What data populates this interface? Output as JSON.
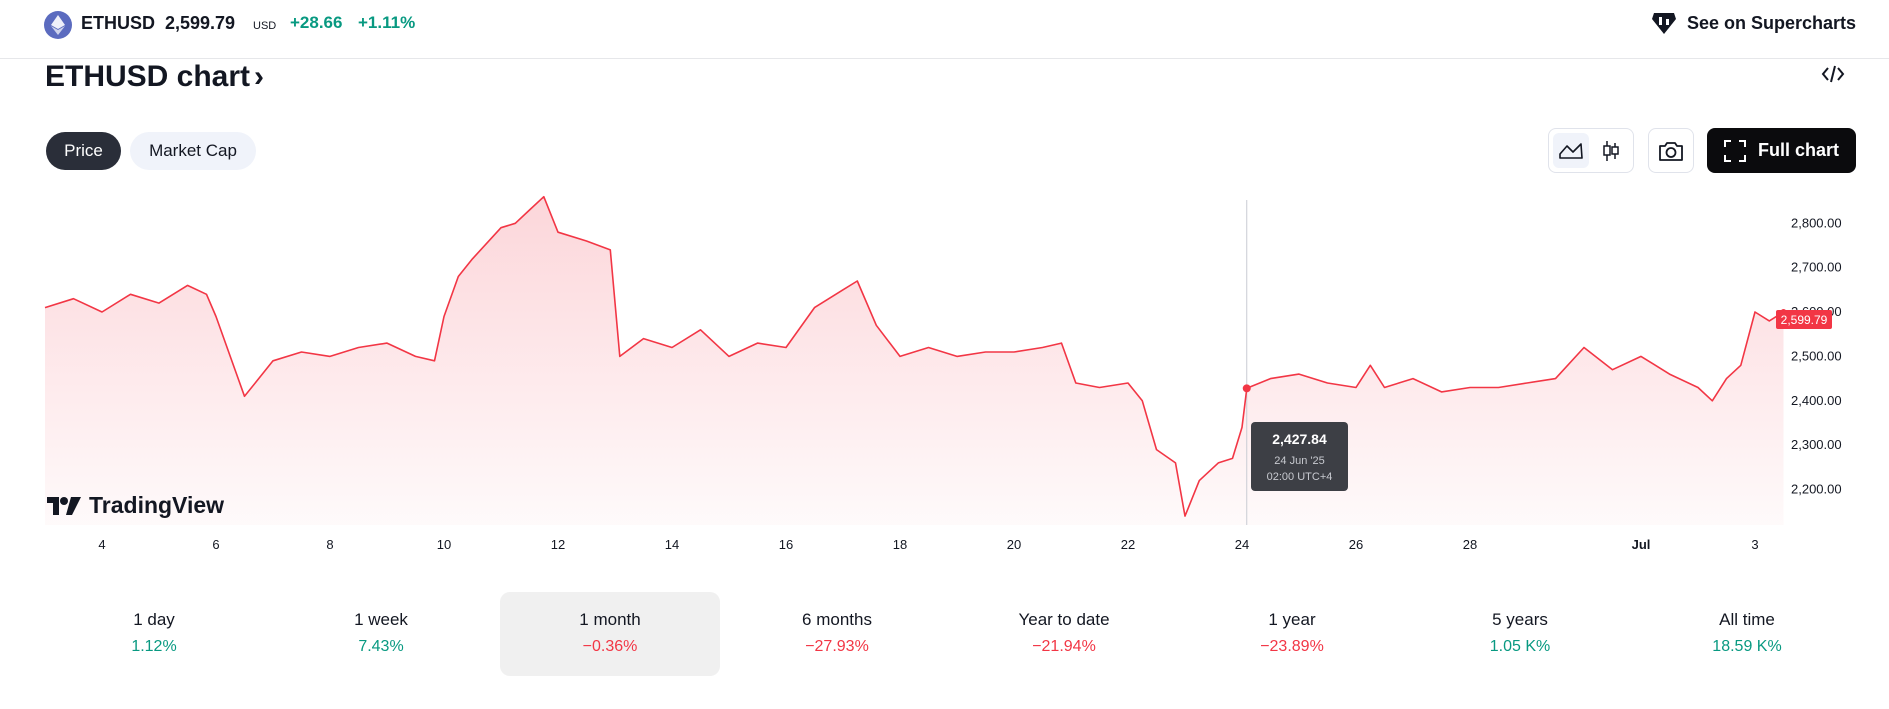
{
  "header": {
    "symbol": "ETHUSD",
    "price": "2,599.79",
    "currency": "USD",
    "change": "+28.66",
    "change_pct": "+1.11%",
    "supercharts_label": "See on Supercharts"
  },
  "title": {
    "text": "ETHUSD chart",
    "chevron": "›"
  },
  "tabs": [
    {
      "label": "Price",
      "active": true
    },
    {
      "label": "Market Cap",
      "active": false
    }
  ],
  "toolbar": {
    "full_chart_label": "Full chart",
    "icons": [
      "area-chart-icon",
      "candles-icon",
      "camera-icon",
      "fullscreen-icon",
      "embed-code-icon"
    ]
  },
  "tooltip": {
    "price": "2,427.84",
    "date": "24 Jun '25",
    "time": "02:00 UTC+4"
  },
  "brand": {
    "name": "TradingView"
  },
  "ranges": [
    {
      "label": "1 day",
      "value": "1.12%",
      "direction": "up"
    },
    {
      "label": "1 week",
      "value": "7.43%",
      "direction": "up"
    },
    {
      "label": "1 month",
      "value": "−0.36%",
      "direction": "down",
      "selected": true
    },
    {
      "label": "6 months",
      "value": "−27.93%",
      "direction": "down"
    },
    {
      "label": "Year to date",
      "value": "−21.94%",
      "direction": "down"
    },
    {
      "label": "1 year",
      "value": "−23.89%",
      "direction": "down"
    },
    {
      "label": "5 years",
      "value": "1.05 K%",
      "direction": "up"
    },
    {
      "label": "All time",
      "value": "18.59 K%",
      "direction": "up"
    }
  ],
  "colors": {
    "line": "#f23645",
    "fill_top": "#fcd4d8",
    "positive": "#089981",
    "negative": "#f23645",
    "button_dark": "#0b0b0d"
  },
  "chart_data": {
    "type": "area",
    "x_ticks": [
      "4",
      "6",
      "8",
      "10",
      "12",
      "14",
      "16",
      "18",
      "20",
      "22",
      "24",
      "26",
      "28",
      "Jul",
      "3"
    ],
    "y_ticks": [
      "2,800.00",
      "2,700.00",
      "2,600.00",
      "2,500.00",
      "2,400.00",
      "2,300.00",
      "2,200.00"
    ],
    "ylim": [
      2120,
      2875
    ],
    "last_value_label": "2,599.79",
    "crosshair_x": "24 Jun '25 02:00",
    "x": [
      "Jun 3 00:00",
      "Jun 3 12:00",
      "Jun 4 00:00",
      "Jun 4 12:00",
      "Jun 5 00:00",
      "Jun 5 12:00",
      "Jun 5 20:00",
      "Jun 6 00:00",
      "Jun 6 12:00",
      "Jun 7 00:00",
      "Jun 7 12:00",
      "Jun 8 00:00",
      "Jun 8 12:00",
      "Jun 9 00:00",
      "Jun 9 12:00",
      "Jun 9 20:00",
      "Jun 10 00:00",
      "Jun 10 06:00",
      "Jun 10 12:00",
      "Jun 11 00:00",
      "Jun 11 06:00",
      "Jun 11 12:00",
      "Jun 11 18:00",
      "Jun 12 00:00",
      "Jun 12 12:00",
      "Jun 12 22:00",
      "Jun 13 02:00",
      "Jun 13 12:00",
      "Jun 14 00:00",
      "Jun 14 12:00",
      "Jun 15 00:00",
      "Jun 15 12:00",
      "Jun 16 00:00",
      "Jun 16 12:00",
      "Jun 17 00:00",
      "Jun 17 06:00",
      "Jun 17 14:00",
      "Jun 18 00:00",
      "Jun 18 12:00",
      "Jun 19 00:00",
      "Jun 19 12:00",
      "Jun 20 00:00",
      "Jun 20 12:00",
      "Jun 20 20:00",
      "Jun 21 02:00",
      "Jun 21 12:00",
      "Jun 22 00:00",
      "Jun 22 06:00",
      "Jun 22 12:00",
      "Jun 22 20:00",
      "Jun 23 00:00",
      "Jun 23 06:00",
      "Jun 23 14:00",
      "Jun 23 20:00",
      "Jun 24 00:00",
      "Jun 24 02:00",
      "Jun 24 12:00",
      "Jun 25 00:00",
      "Jun 25 12:00",
      "Jun 26 00:00",
      "Jun 26 06:00",
      "Jun 26 12:00",
      "Jun 27 00:00",
      "Jun 27 12:00",
      "Jun 28 00:00",
      "Jun 28 12:00",
      "Jun 29 00:00",
      "Jun 29 12:00",
      "Jun 30 00:00",
      "Jun 30 12:00",
      "Jul 1 00:00",
      "Jul 1 12:00",
      "Jul 2 00:00",
      "Jul 2 06:00",
      "Jul 2 12:00",
      "Jul 2 18:00",
      "Jul 3 00:00",
      "Jul 3 06:00",
      "Jul 3 12:00"
    ],
    "values": [
      2610,
      2630,
      2600,
      2640,
      2620,
      2660,
      2640,
      2590,
      2410,
      2490,
      2510,
      2500,
      2520,
      2530,
      2500,
      2490,
      2590,
      2680,
      2720,
      2790,
      2800,
      2830,
      2860,
      2780,
      2760,
      2740,
      2500,
      2540,
      2520,
      2560,
      2500,
      2530,
      2520,
      2610,
      2650,
      2670,
      2570,
      2500,
      2520,
      2500,
      2510,
      2510,
      2520,
      2530,
      2440,
      2430,
      2440,
      2400,
      2290,
      2260,
      2140,
      2220,
      2260,
      2270,
      2340,
      2428,
      2450,
      2460,
      2440,
      2430,
      2480,
      2430,
      2450,
      2420,
      2430,
      2430,
      2440,
      2450,
      2520,
      2470,
      2500,
      2460,
      2430,
      2400,
      2450,
      2480,
      2600,
      2580,
      2600
    ]
  }
}
